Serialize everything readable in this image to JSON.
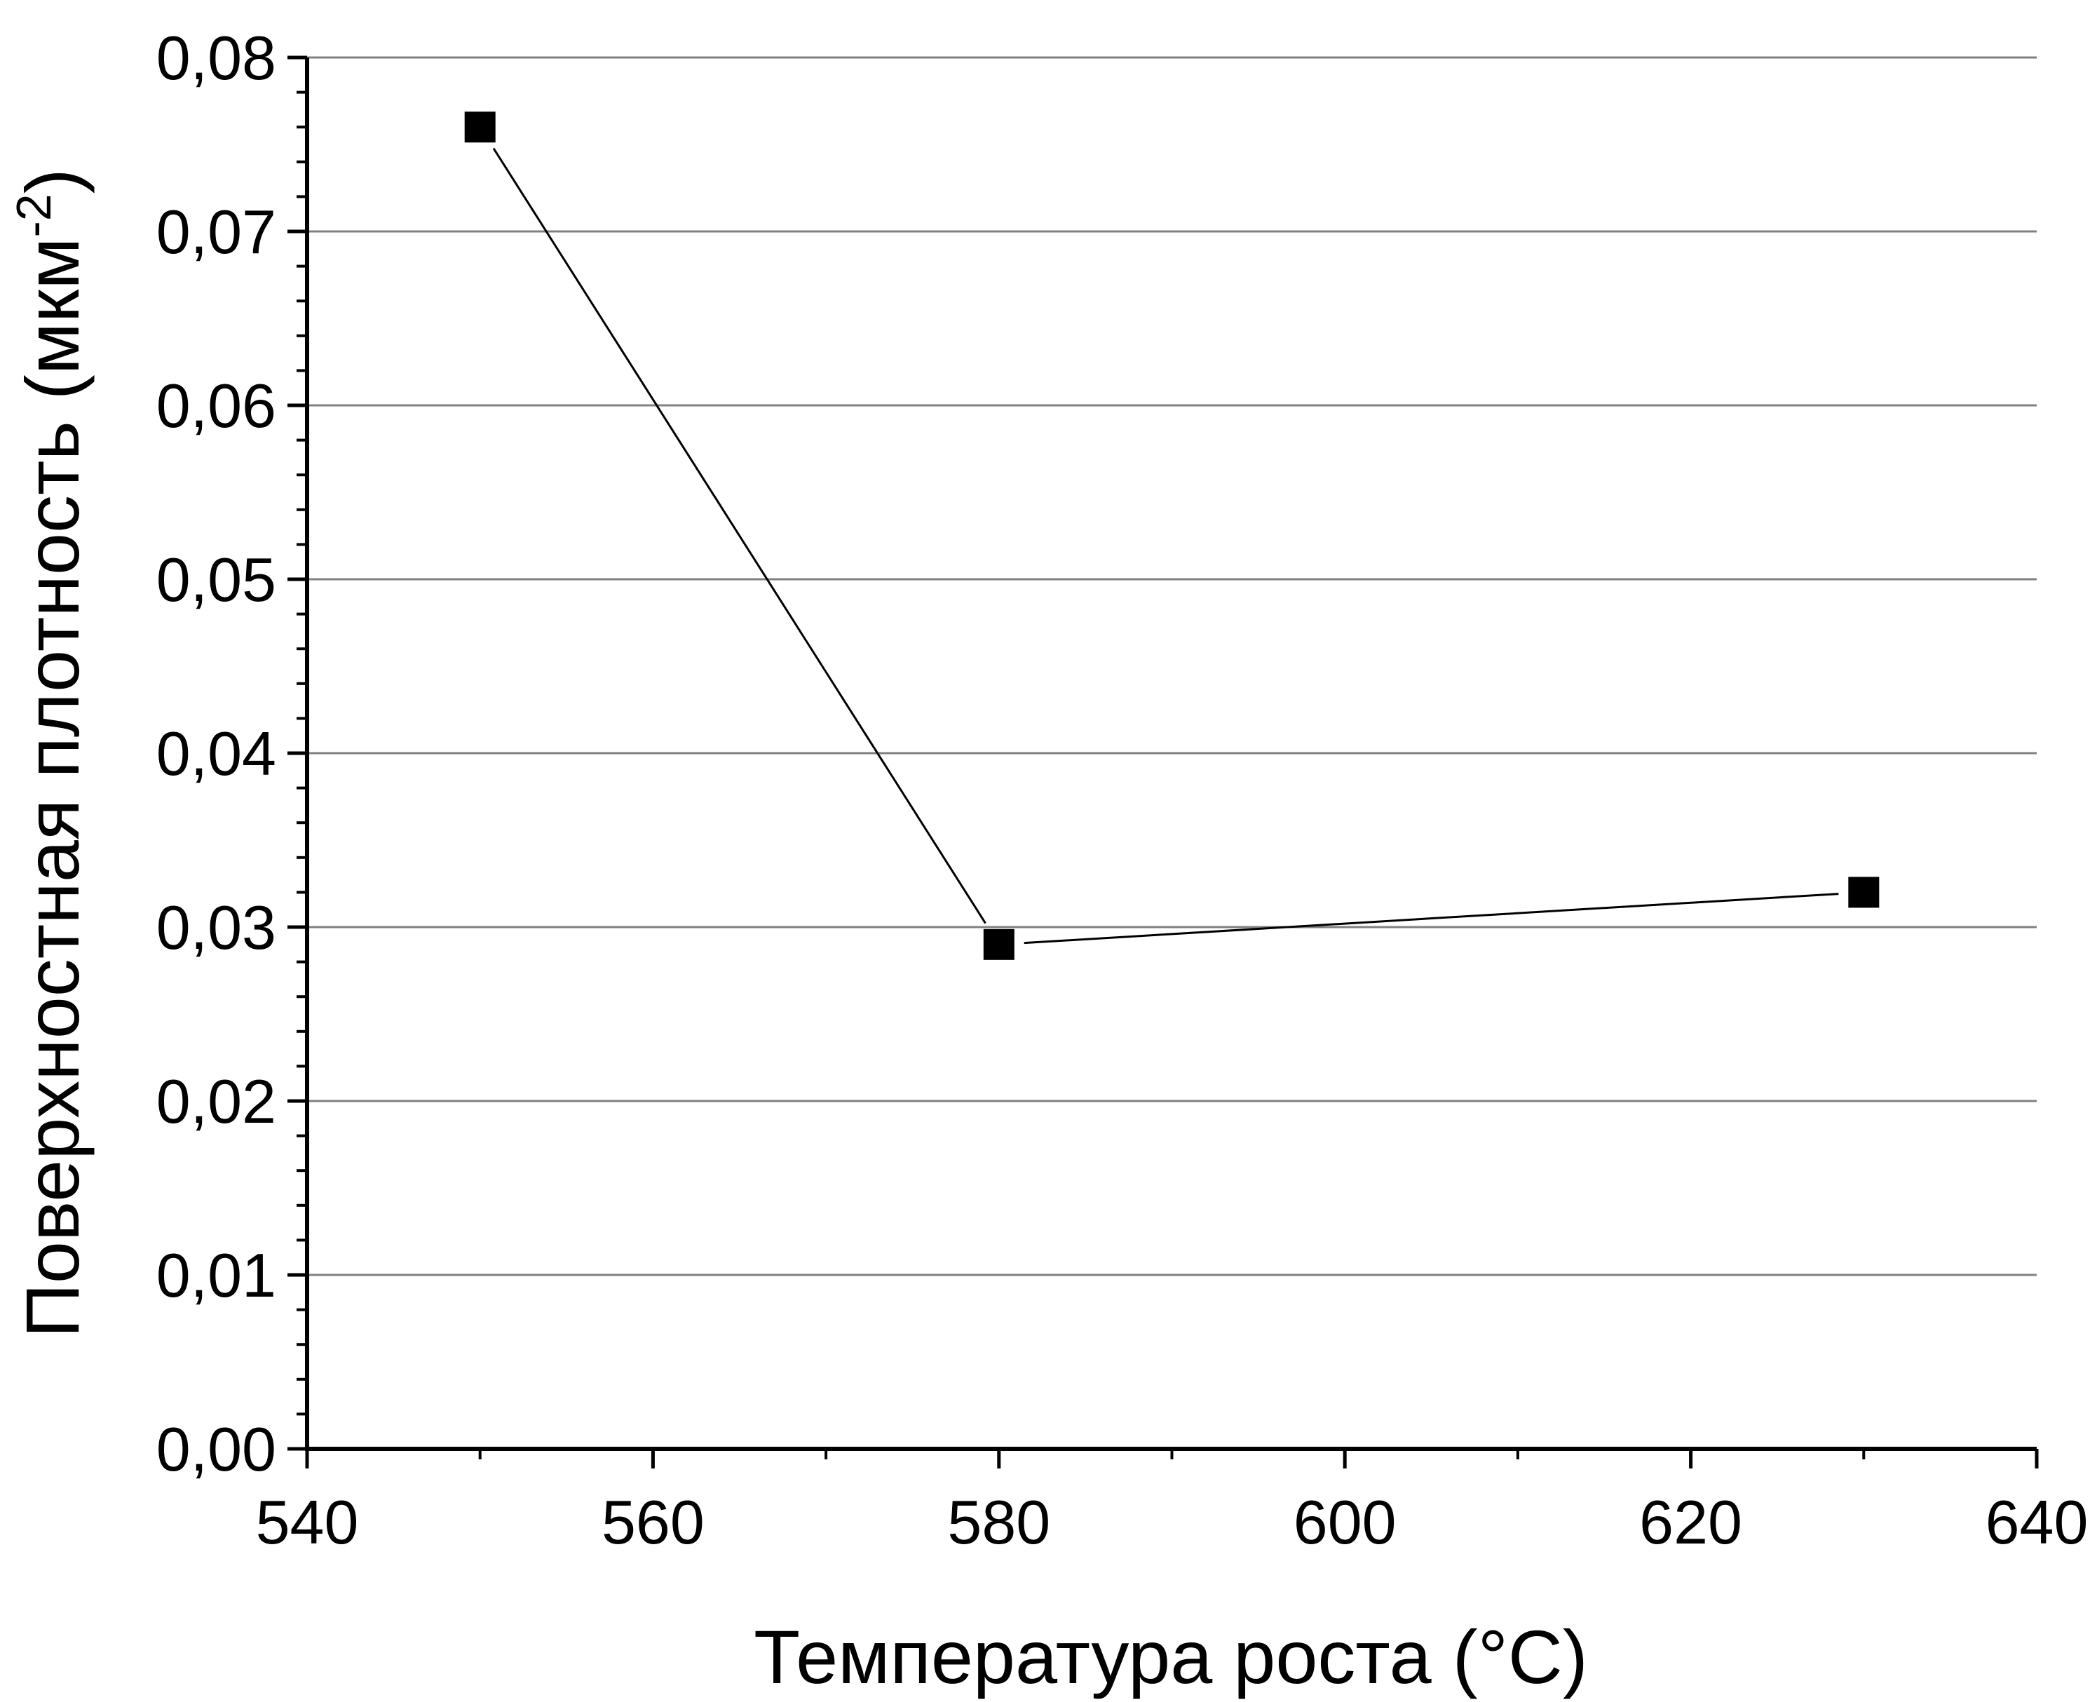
{
  "chart_data": {
    "type": "line",
    "title": "",
    "xlabel": "Температура роста (°C)",
    "ylabel": {
      "main": "Поверхностная плотность (мкм",
      "superscript": "-2",
      "close": ")"
    },
    "xlim": [
      540,
      640
    ],
    "ylim": [
      0.0,
      0.08
    ],
    "x_ticks": [
      {
        "value": 540,
        "label": "540"
      },
      {
        "value": 560,
        "label": "560"
      },
      {
        "value": 580,
        "label": "580"
      },
      {
        "value": 600,
        "label": "600"
      },
      {
        "value": 620,
        "label": "620"
      },
      {
        "value": 640,
        "label": "640"
      }
    ],
    "x_minor_ticks": [
      550,
      570,
      590,
      610,
      630
    ],
    "y_ticks": [
      {
        "value": 0.0,
        "label": "0,00"
      },
      {
        "value": 0.01,
        "label": "0,01"
      },
      {
        "value": 0.02,
        "label": "0,02"
      },
      {
        "value": 0.03,
        "label": "0,03"
      },
      {
        "value": 0.04,
        "label": "0,04"
      },
      {
        "value": 0.05,
        "label": "0,05"
      },
      {
        "value": 0.06,
        "label": "0,06"
      },
      {
        "value": 0.07,
        "label": "0,07"
      },
      {
        "value": 0.08,
        "label": "0,08"
      }
    ],
    "y_minor_step": 0.002,
    "grid": {
      "horizontal": true,
      "vertical": false,
      "color": "#808080"
    },
    "series": [
      {
        "marker": "square",
        "color": "#000000",
        "x": [
          550,
          580,
          630
        ],
        "y": [
          0.076,
          0.029,
          0.032
        ]
      }
    ]
  }
}
